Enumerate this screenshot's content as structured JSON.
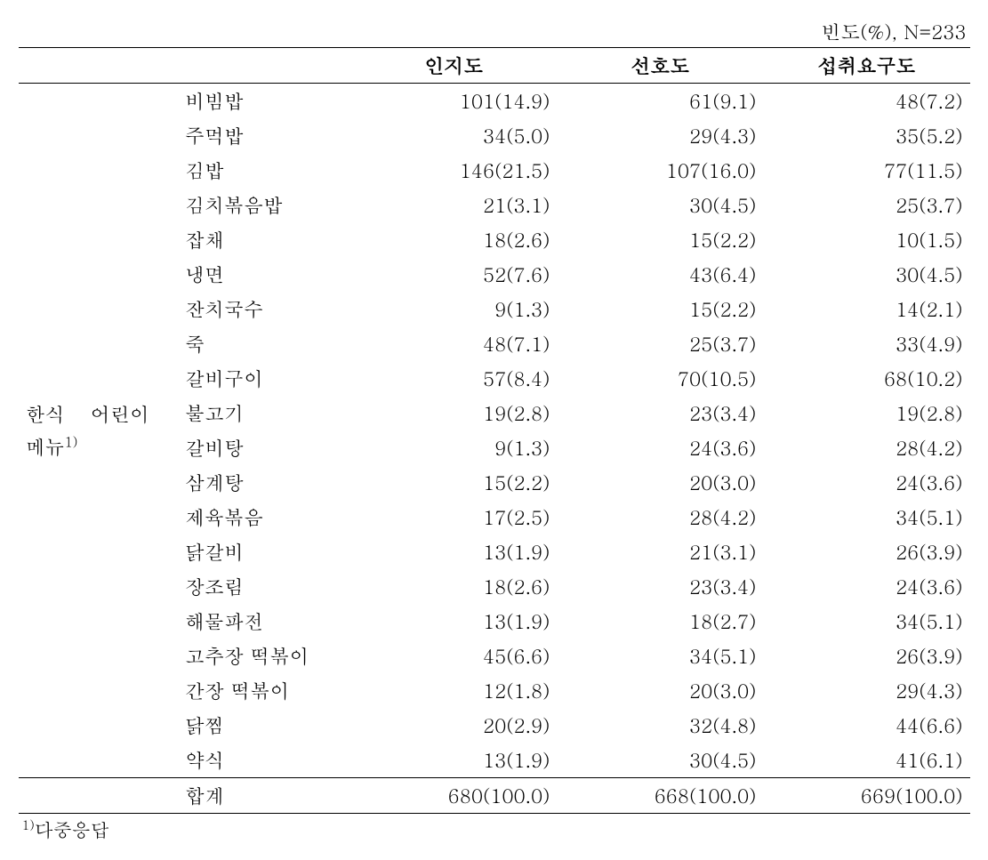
{
  "header_note": "빈도(%),  N=233",
  "columns": {
    "blank1": "",
    "blank2": "",
    "c1": "인지도",
    "c2": "선호도",
    "c3": "섭취요구도"
  },
  "category_label_line1": "한식　 어린이",
  "category_label_line2": "메뉴",
  "category_sup": "1)",
  "rows": [
    {
      "item": "비빔밥",
      "v1": "101(14.9)",
      "v2": "61(9.1)",
      "v3": "48(7.2)"
    },
    {
      "item": "주먹밥",
      "v1": "34(5.0)",
      "v2": "29(4.3)",
      "v3": "35(5.2)"
    },
    {
      "item": "김밥",
      "v1": "146(21.5)",
      "v2": "107(16.0)",
      "v3": "77(11.5)"
    },
    {
      "item": "김치볶음밥",
      "v1": "21(3.1)",
      "v2": "30(4.5)",
      "v3": "25(3.7)"
    },
    {
      "item": "잡채",
      "v1": "18(2.6)",
      "v2": "15(2.2)",
      "v3": "10(1.5)"
    },
    {
      "item": "냉면",
      "v1": "52(7.6)",
      "v2": "43(6.4)",
      "v3": "30(4.5)"
    },
    {
      "item": "잔치국수",
      "v1": "9(1.3)",
      "v2": "15(2.2)",
      "v3": "14(2.1)"
    },
    {
      "item": "죽",
      "v1": "48(7.1)",
      "v2": "25(3.7)",
      "v3": "33(4.9)"
    },
    {
      "item": "갈비구이",
      "v1": "57(8.4)",
      "v2": "70(10.5)",
      "v3": "68(10.2)"
    },
    {
      "item": "불고기",
      "v1": "19(2.8)",
      "v2": "23(3.4)",
      "v3": "19(2.8)"
    },
    {
      "item": "갈비탕",
      "v1": "9(1.3)",
      "v2": "24(3.6)",
      "v3": "28(4.2)"
    },
    {
      "item": "삼계탕",
      "v1": "15(2.2)",
      "v2": "20(3.0)",
      "v3": "24(3.6)"
    },
    {
      "item": "제육볶음",
      "v1": "17(2.5)",
      "v2": "28(4.2)",
      "v3": "34(5.1)"
    },
    {
      "item": "닭갈비",
      "v1": "13(1.9)",
      "v2": "21(3.1)",
      "v3": "26(3.9)"
    },
    {
      "item": "장조림",
      "v1": "18(2.6)",
      "v2": "23(3.4)",
      "v3": "24(3.6)"
    },
    {
      "item": "해물파전",
      "v1": "13(1.9)",
      "v2": "18(2.7)",
      "v3": "34(5.1)"
    },
    {
      "item": "고추장 떡볶이",
      "v1": "45(6.6)",
      "v2": "34(5.1)",
      "v3": "26(3.9)"
    },
    {
      "item": "간장 떡볶이",
      "v1": "12(1.8)",
      "v2": "20(3.0)",
      "v3": "29(4.3)"
    },
    {
      "item": "닭찜",
      "v1": "20(2.9)",
      "v2": "32(4.8)",
      "v3": "44(6.6)"
    },
    {
      "item": "약식",
      "v1": "13(1.9)",
      "v2": "30(4.5)",
      "v3": "41(6.1)"
    }
  ],
  "total": {
    "label": "합계",
    "v1": "680(100.0)",
    "v2": "668(100.0)",
    "v3": "669(100.0)"
  },
  "footnote_sup": "1)",
  "footnote_text": "다중응답"
}
